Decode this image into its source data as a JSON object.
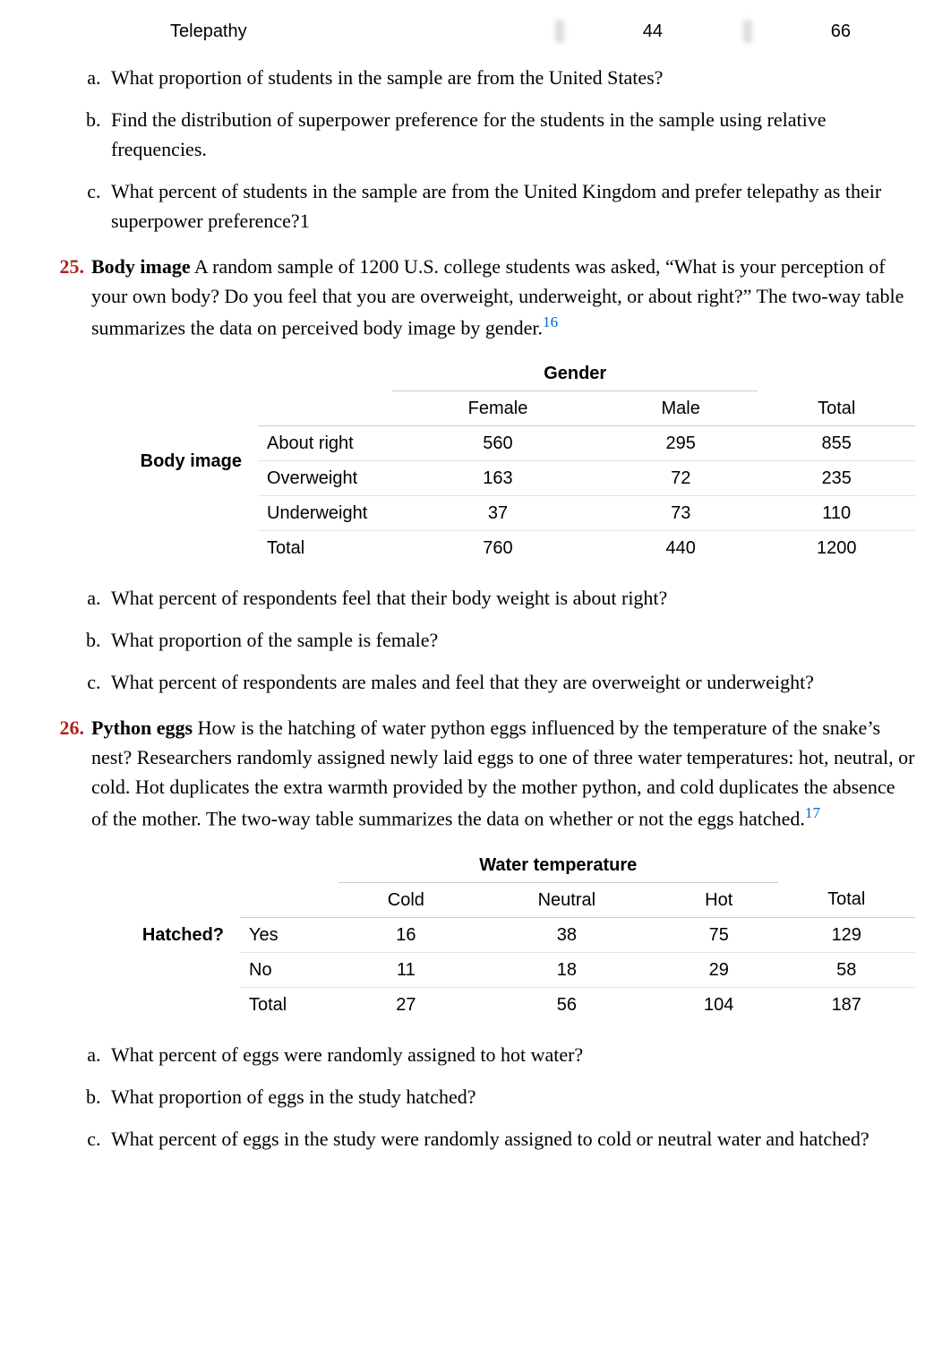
{
  "topRow": {
    "label": "Telepathy",
    "val1": "44",
    "val2": "66"
  },
  "qset1": {
    "a": "What proportion of students in the sample are from the United States?",
    "b": "Find the distribution of superpower preference for the students in the sample using relative frequencies.",
    "c": "What percent of students in the sample are from the United Kingdom and prefer telepathy as their superpower preference?1"
  },
  "p25": {
    "num": "25.",
    "title": "Body image",
    "text": " A random sample of 1200 U.S. college students was asked, “What is your perception of your own body? Do you feel that you are overweight, underweight, or about right?” The two-way table summarizes the data on perceived body image by gender.",
    "ref": "16",
    "table": {
      "rowLabel": "Body image",
      "groupHeader": "Gender",
      "cols": [
        "Female",
        "Male",
        "Total"
      ],
      "rows": [
        {
          "name": "About right",
          "vals": [
            "560",
            "295",
            "855"
          ]
        },
        {
          "name": "Overweight",
          "vals": [
            "163",
            "72",
            "235"
          ]
        },
        {
          "name": "Underweight",
          "vals": [
            "37",
            "73",
            "110"
          ]
        }
      ],
      "total": {
        "name": "Total",
        "vals": [
          "760",
          "440",
          "1200"
        ]
      }
    },
    "qa": "What percent of respondents feel that their body weight is about right?",
    "qb": "What proportion of the sample is female?",
    "qc": "What percent of respondents are males and feel that they are overweight or underweight?"
  },
  "p26": {
    "num": "26.",
    "title": "Python eggs",
    "text": " How is the hatching of water python eggs influenced by the temperature of the snake’s nest? Researchers randomly assigned newly laid eggs to one of three water temperatures: hot, neutral, or cold. Hot duplicates the extra warmth provided by the mother python, and cold duplicates the absence of the mother. The two-way table summarizes the data on whether or not the eggs hatched.",
    "ref": "17",
    "table": {
      "rowLabel": "Hatched?",
      "groupHeader": "Water temperature",
      "cols": [
        "Cold",
        "Neutral",
        "Hot",
        "Total"
      ],
      "rows": [
        {
          "name": "Yes",
          "vals": [
            "16",
            "38",
            "75",
            "129"
          ]
        },
        {
          "name": "No",
          "vals": [
            "11",
            "18",
            "29",
            "58"
          ]
        }
      ],
      "total": {
        "name": "Total",
        "vals": [
          "27",
          "56",
          "104",
          "187"
        ]
      }
    },
    "qa": "What percent of eggs were randomly assigned to hot water?",
    "qb": "What proportion of eggs in the study hatched?",
    "qc": "What percent of eggs in the study were randomly assigned to cold or neutral water and hatched?"
  }
}
